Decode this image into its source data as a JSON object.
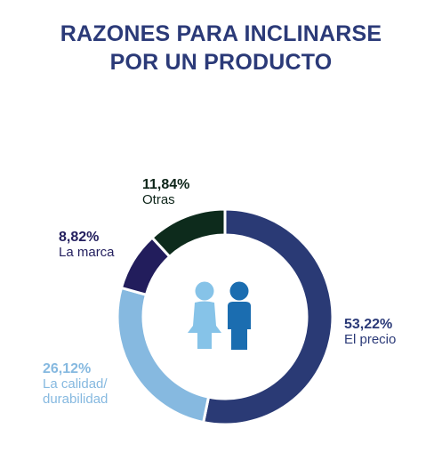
{
  "title": {
    "line1": "RAZONES PARA INCLINARSE",
    "line2": "POR UN PRODUCTO"
  },
  "chart_data": {
    "type": "donut",
    "slices": [
      {
        "label": "El precio",
        "value": 53.22,
        "value_text": "53,22%",
        "color": "#2a3a75"
      },
      {
        "label": "La calidad/ durabilidad",
        "label_lines": [
          "La calidad/",
          "durabilidad"
        ],
        "value": 26.12,
        "value_text": "26,12%",
        "color": "#86b9e0"
      },
      {
        "label": "La marca",
        "value": 8.82,
        "value_text": "8,82%",
        "color": "#221d5c"
      },
      {
        "label": "Otras",
        "value": 11.84,
        "value_text": "11,84%",
        "color": "#0d2b1c"
      }
    ],
    "start": "top",
    "direction": "clockwise"
  },
  "icons": {
    "female": {
      "name": "female-person-icon",
      "color": "#86c3e8"
    },
    "male": {
      "name": "male-person-icon",
      "color": "#1b6db0"
    }
  }
}
